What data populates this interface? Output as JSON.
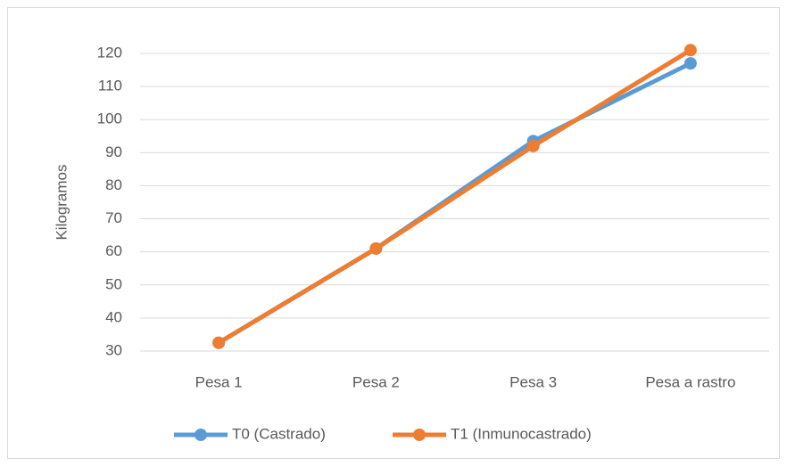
{
  "chart_data": {
    "type": "line",
    "y_label": "Kilogramos",
    "categories": [
      "Pesa 1",
      "Pesa 2",
      "Pesa 3",
      "Pesa a rastro"
    ],
    "series": [
      {
        "name": "T0 (Castrado)",
        "color": "#5b9bd5",
        "values": [
          32.5,
          61,
          93.5,
          117
        ]
      },
      {
        "name": "T1 (Inmunocastrado)",
        "color": "#ed7d31",
        "values": [
          32.5,
          61,
          92,
          121
        ]
      }
    ],
    "ylim": [
      30,
      120
    ],
    "yticks": [
      30,
      40,
      50,
      60,
      70,
      80,
      90,
      100,
      110,
      120
    ],
    "grid": true,
    "legend": "bottom"
  }
}
